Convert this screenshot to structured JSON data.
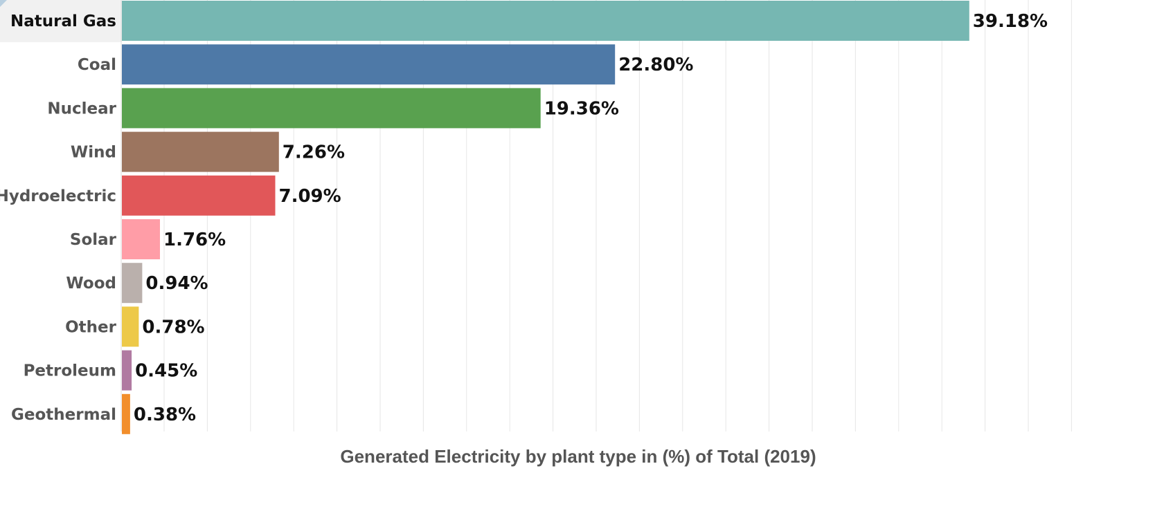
{
  "chart_data": {
    "type": "bar",
    "orientation": "horizontal",
    "categories": [
      "Natural Gas",
      "Coal",
      "Nuclear",
      "Wind",
      "Hydroelectric",
      "Solar",
      "Wood",
      "Other",
      "Petroleum",
      "Geothermal"
    ],
    "values": [
      39.18,
      22.8,
      19.36,
      7.26,
      7.09,
      1.76,
      0.94,
      0.78,
      0.45,
      0.38
    ],
    "value_labels": [
      "39.18%",
      "22.80%",
      "19.36%",
      "7.26%",
      "7.09%",
      "1.76%",
      "0.94%",
      "0.78%",
      "0.45%",
      "0.38%"
    ],
    "colors": [
      "#76b7b2",
      "#4e79a7",
      "#59a14f",
      "#9c755f",
      "#e15759",
      "#ff9da7",
      "#bab0ac",
      "#edc948",
      "#b07aa1",
      "#f28e2b"
    ],
    "selected_category": "Natural Gas",
    "xlabel": "Generated Electricity by plant type in (%) of Total (2019)",
    "ylabel": "",
    "xlim": [
      0,
      44.5
    ],
    "grid": true
  }
}
